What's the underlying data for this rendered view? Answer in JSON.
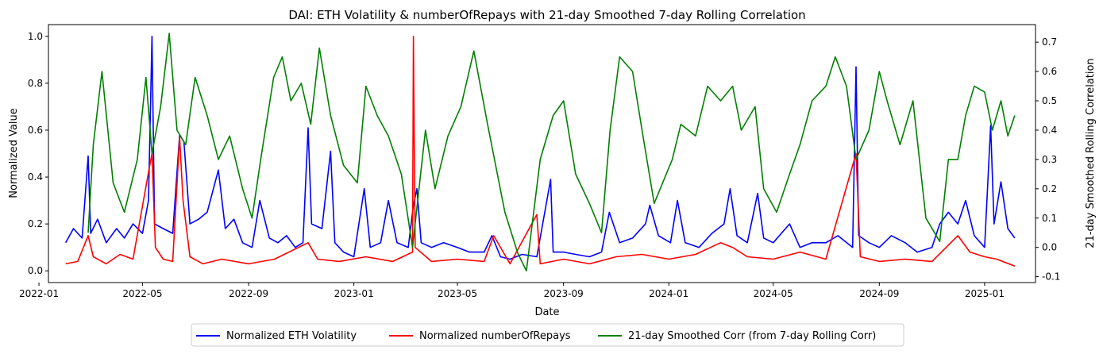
{
  "chart_data": {
    "type": "line",
    "title": "DAI: ETH Volatility & numberOfRepays with 21-day Smoothed 7-day Rolling Correlation",
    "xlabel": "Date",
    "ylabel": "Normalized Value",
    "y2label": "21-day Smoothed Rolling Correlation",
    "x_ticks": [
      "2022-01",
      "2022-05",
      "2022-09",
      "2023-01",
      "2023-05",
      "2023-09",
      "2024-01",
      "2024-05",
      "2024-09",
      "2025-01"
    ],
    "x_range": [
      "2022-01-12",
      "2025-03-01"
    ],
    "ylim": [
      -0.05,
      1.05
    ],
    "y_ticks": [
      "0.0",
      "0.2",
      "0.4",
      "0.6",
      "0.8",
      "1.0"
    ],
    "y2lim": [
      -0.12,
      0.76
    ],
    "y2_ticks": [
      "-0.1",
      "0.0",
      "0.1",
      "0.2",
      "0.3",
      "0.4",
      "0.5",
      "0.6",
      "0.7"
    ],
    "grid": false,
    "legend_placement": "bottom-center",
    "series": [
      {
        "name": "Normalized ETH Volatility",
        "axis": "left",
        "color": "#0000ff",
        "points": [
          [
            "2022-02-01",
            0.12
          ],
          [
            "2022-02-10",
            0.18
          ],
          [
            "2022-02-20",
            0.14
          ],
          [
            "2022-02-27",
            0.49
          ],
          [
            "2022-03-02",
            0.16
          ],
          [
            "2022-03-10",
            0.22
          ],
          [
            "2022-03-20",
            0.12
          ],
          [
            "2022-04-01",
            0.18
          ],
          [
            "2022-04-10",
            0.14
          ],
          [
            "2022-04-20",
            0.2
          ],
          [
            "2022-05-01",
            0.16
          ],
          [
            "2022-05-08",
            0.3
          ],
          [
            "2022-05-12",
            1.0
          ],
          [
            "2022-05-15",
            0.2
          ],
          [
            "2022-05-25",
            0.18
          ],
          [
            "2022-06-05",
            0.16
          ],
          [
            "2022-06-13",
            0.58
          ],
          [
            "2022-06-18",
            0.55
          ],
          [
            "2022-06-25",
            0.2
          ],
          [
            "2022-07-05",
            0.22
          ],
          [
            "2022-07-15",
            0.25
          ],
          [
            "2022-07-28",
            0.43
          ],
          [
            "2022-08-05",
            0.18
          ],
          [
            "2022-08-15",
            0.22
          ],
          [
            "2022-08-25",
            0.12
          ],
          [
            "2022-09-05",
            0.1
          ],
          [
            "2022-09-14",
            0.3
          ],
          [
            "2022-09-25",
            0.14
          ],
          [
            "2022-10-05",
            0.12
          ],
          [
            "2022-10-15",
            0.15
          ],
          [
            "2022-10-25",
            0.1
          ],
          [
            "2022-11-03",
            0.12
          ],
          [
            "2022-11-09",
            0.61
          ],
          [
            "2022-11-13",
            0.2
          ],
          [
            "2022-11-25",
            0.18
          ],
          [
            "2022-12-05",
            0.51
          ],
          [
            "2022-12-10",
            0.12
          ],
          [
            "2022-12-20",
            0.08
          ],
          [
            "2023-01-01",
            0.06
          ],
          [
            "2023-01-13",
            0.35
          ],
          [
            "2023-01-20",
            0.1
          ],
          [
            "2023-02-01",
            0.12
          ],
          [
            "2023-02-10",
            0.3
          ],
          [
            "2023-02-20",
            0.12
          ],
          [
            "2023-03-05",
            0.1
          ],
          [
            "2023-03-11",
            0.28
          ],
          [
            "2023-03-15",
            0.35
          ],
          [
            "2023-03-20",
            0.12
          ],
          [
            "2023-04-01",
            0.1
          ],
          [
            "2023-04-15",
            0.12
          ],
          [
            "2023-05-01",
            0.1
          ],
          [
            "2023-05-15",
            0.08
          ],
          [
            "2023-06-01",
            0.08
          ],
          [
            "2023-06-10",
            0.15
          ],
          [
            "2023-06-20",
            0.06
          ],
          [
            "2023-07-01",
            0.05
          ],
          [
            "2023-07-15",
            0.07
          ],
          [
            "2023-08-01",
            0.06
          ],
          [
            "2023-08-17",
            0.39
          ],
          [
            "2023-08-20",
            0.08
          ],
          [
            "2023-09-01",
            0.08
          ],
          [
            "2023-09-15",
            0.07
          ],
          [
            "2023-10-01",
            0.06
          ],
          [
            "2023-10-15",
            0.08
          ],
          [
            "2023-10-24",
            0.25
          ],
          [
            "2023-11-05",
            0.12
          ],
          [
            "2023-11-20",
            0.14
          ],
          [
            "2023-12-05",
            0.2
          ],
          [
            "2023-12-10",
            0.28
          ],
          [
            "2023-12-20",
            0.15
          ],
          [
            "2024-01-03",
            0.12
          ],
          [
            "2024-01-11",
            0.3
          ],
          [
            "2024-01-20",
            0.12
          ],
          [
            "2024-02-05",
            0.1
          ],
          [
            "2024-02-20",
            0.16
          ],
          [
            "2024-03-05",
            0.2
          ],
          [
            "2024-03-12",
            0.35
          ],
          [
            "2024-03-20",
            0.15
          ],
          [
            "2024-04-01",
            0.12
          ],
          [
            "2024-04-13",
            0.33
          ],
          [
            "2024-04-20",
            0.14
          ],
          [
            "2024-05-01",
            0.12
          ],
          [
            "2024-05-20",
            0.2
          ],
          [
            "2024-06-01",
            0.1
          ],
          [
            "2024-06-15",
            0.12
          ],
          [
            "2024-07-01",
            0.12
          ],
          [
            "2024-07-15",
            0.15
          ],
          [
            "2024-08-01",
            0.1
          ],
          [
            "2024-08-05",
            0.87
          ],
          [
            "2024-08-08",
            0.15
          ],
          [
            "2024-08-20",
            0.12
          ],
          [
            "2024-09-01",
            0.1
          ],
          [
            "2024-09-15",
            0.15
          ],
          [
            "2024-10-01",
            0.12
          ],
          [
            "2024-10-15",
            0.08
          ],
          [
            "2024-11-01",
            0.1
          ],
          [
            "2024-11-10",
            0.2
          ],
          [
            "2024-11-20",
            0.25
          ],
          [
            "2024-12-01",
            0.2
          ],
          [
            "2024-12-10",
            0.3
          ],
          [
            "2024-12-20",
            0.15
          ],
          [
            "2025-01-01",
            0.1
          ],
          [
            "2025-01-08",
            0.62
          ],
          [
            "2025-01-12",
            0.2
          ],
          [
            "2025-01-20",
            0.38
          ],
          [
            "2025-01-28",
            0.18
          ],
          [
            "2025-02-05",
            0.14
          ]
        ]
      },
      {
        "name": "Normalized numberOfRepays",
        "axis": "left",
        "color": "#ff0000",
        "points": [
          [
            "2022-02-01",
            0.03
          ],
          [
            "2022-02-15",
            0.04
          ],
          [
            "2022-02-27",
            0.15
          ],
          [
            "2022-03-05",
            0.06
          ],
          [
            "2022-03-20",
            0.03
          ],
          [
            "2022-04-05",
            0.07
          ],
          [
            "2022-04-20",
            0.05
          ],
          [
            "2022-05-08",
            0.42
          ],
          [
            "2022-05-12",
            0.5
          ],
          [
            "2022-05-16",
            0.1
          ],
          [
            "2022-05-25",
            0.05
          ],
          [
            "2022-06-05",
            0.04
          ],
          [
            "2022-06-13",
            0.57
          ],
          [
            "2022-06-17",
            0.3
          ],
          [
            "2022-06-25",
            0.06
          ],
          [
            "2022-07-10",
            0.03
          ],
          [
            "2022-08-01",
            0.05
          ],
          [
            "2022-09-01",
            0.03
          ],
          [
            "2022-10-01",
            0.05
          ],
          [
            "2022-11-09",
            0.12
          ],
          [
            "2022-11-20",
            0.05
          ],
          [
            "2022-12-15",
            0.04
          ],
          [
            "2023-01-15",
            0.06
          ],
          [
            "2023-02-15",
            0.04
          ],
          [
            "2023-03-10",
            0.08
          ],
          [
            "2023-03-11",
            1.0
          ],
          [
            "2023-03-13",
            0.1
          ],
          [
            "2023-04-01",
            0.04
          ],
          [
            "2023-05-01",
            0.05
          ],
          [
            "2023-06-01",
            0.04
          ],
          [
            "2023-06-12",
            0.15
          ],
          [
            "2023-07-01",
            0.03
          ],
          [
            "2023-08-01",
            0.24
          ],
          [
            "2023-08-05",
            0.03
          ],
          [
            "2023-09-01",
            0.05
          ],
          [
            "2023-10-01",
            0.03
          ],
          [
            "2023-11-01",
            0.06
          ],
          [
            "2023-12-01",
            0.07
          ],
          [
            "2024-01-01",
            0.05
          ],
          [
            "2024-02-01",
            0.07
          ],
          [
            "2024-03-01",
            0.12
          ],
          [
            "2024-03-15",
            0.1
          ],
          [
            "2024-04-01",
            0.06
          ],
          [
            "2024-05-01",
            0.05
          ],
          [
            "2024-06-01",
            0.08
          ],
          [
            "2024-07-01",
            0.05
          ],
          [
            "2024-08-05",
            0.5
          ],
          [
            "2024-08-10",
            0.06
          ],
          [
            "2024-09-01",
            0.04
          ],
          [
            "2024-10-01",
            0.05
          ],
          [
            "2024-11-01",
            0.04
          ],
          [
            "2024-12-01",
            0.15
          ],
          [
            "2024-12-15",
            0.08
          ],
          [
            "2025-01-01",
            0.06
          ],
          [
            "2025-01-15",
            0.05
          ],
          [
            "2025-02-05",
            0.02
          ]
        ]
      },
      {
        "name": "21-day Smoothed Corr (from 7-day Rolling Corr)",
        "axis": "right",
        "color": "#008000",
        "points": [
          [
            "2022-02-27",
            0.05
          ],
          [
            "2022-03-05",
            0.35
          ],
          [
            "2022-03-15",
            0.6
          ],
          [
            "2022-03-28",
            0.22
          ],
          [
            "2022-04-10",
            0.12
          ],
          [
            "2022-04-25",
            0.3
          ],
          [
            "2022-05-05",
            0.58
          ],
          [
            "2022-05-12",
            0.32
          ],
          [
            "2022-05-22",
            0.48
          ],
          [
            "2022-06-01",
            0.73
          ],
          [
            "2022-06-10",
            0.4
          ],
          [
            "2022-06-20",
            0.35
          ],
          [
            "2022-07-01",
            0.58
          ],
          [
            "2022-07-15",
            0.45
          ],
          [
            "2022-07-28",
            0.3
          ],
          [
            "2022-08-10",
            0.38
          ],
          [
            "2022-08-25",
            0.2
          ],
          [
            "2022-09-05",
            0.1
          ],
          [
            "2022-09-15",
            0.3
          ],
          [
            "2022-09-30",
            0.58
          ],
          [
            "2022-10-10",
            0.65
          ],
          [
            "2022-10-20",
            0.5
          ],
          [
            "2022-11-01",
            0.56
          ],
          [
            "2022-11-12",
            0.42
          ],
          [
            "2022-11-22",
            0.68
          ],
          [
            "2022-12-05",
            0.45
          ],
          [
            "2022-12-20",
            0.28
          ],
          [
            "2023-01-05",
            0.22
          ],
          [
            "2023-01-15",
            0.55
          ],
          [
            "2023-01-28",
            0.45
          ],
          [
            "2023-02-10",
            0.38
          ],
          [
            "2023-02-25",
            0.25
          ],
          [
            "2023-03-10",
            0.0
          ],
          [
            "2023-03-25",
            0.4
          ],
          [
            "2023-04-05",
            0.2
          ],
          [
            "2023-04-20",
            0.38
          ],
          [
            "2023-05-05",
            0.48
          ],
          [
            "2023-05-20",
            0.67
          ],
          [
            "2023-06-05",
            0.42
          ],
          [
            "2023-06-25",
            0.12
          ],
          [
            "2023-07-10",
            -0.02
          ],
          [
            "2023-07-20",
            -0.08
          ],
          [
            "2023-08-05",
            0.3
          ],
          [
            "2023-08-20",
            0.45
          ],
          [
            "2023-09-01",
            0.5
          ],
          [
            "2023-09-15",
            0.25
          ],
          [
            "2023-10-01",
            0.15
          ],
          [
            "2023-10-15",
            0.05
          ],
          [
            "2023-10-25",
            0.4
          ],
          [
            "2023-11-05",
            0.65
          ],
          [
            "2023-11-20",
            0.6
          ],
          [
            "2023-12-01",
            0.4
          ],
          [
            "2023-12-15",
            0.15
          ],
          [
            "2024-01-05",
            0.3
          ],
          [
            "2024-01-15",
            0.42
          ],
          [
            "2024-02-01",
            0.38
          ],
          [
            "2024-02-15",
            0.55
          ],
          [
            "2024-03-01",
            0.5
          ],
          [
            "2024-03-15",
            0.55
          ],
          [
            "2024-03-25",
            0.4
          ],
          [
            "2024-04-10",
            0.48
          ],
          [
            "2024-04-20",
            0.2
          ],
          [
            "2024-05-05",
            0.12
          ],
          [
            "2024-05-20",
            0.25
          ],
          [
            "2024-06-01",
            0.35
          ],
          [
            "2024-06-15",
            0.5
          ],
          [
            "2024-07-01",
            0.55
          ],
          [
            "2024-07-12",
            0.65
          ],
          [
            "2024-07-25",
            0.55
          ],
          [
            "2024-08-05",
            0.3
          ],
          [
            "2024-08-20",
            0.4
          ],
          [
            "2024-09-01",
            0.6
          ],
          [
            "2024-09-10",
            0.5
          ],
          [
            "2024-09-25",
            0.35
          ],
          [
            "2024-10-10",
            0.5
          ],
          [
            "2024-10-25",
            0.1
          ],
          [
            "2024-11-10",
            0.02
          ],
          [
            "2024-11-20",
            0.3
          ],
          [
            "2024-12-01",
            0.3
          ],
          [
            "2024-12-10",
            0.45
          ],
          [
            "2024-12-20",
            0.55
          ],
          [
            "2025-01-01",
            0.53
          ],
          [
            "2025-01-10",
            0.4
          ],
          [
            "2025-01-20",
            0.5
          ],
          [
            "2025-01-28",
            0.38
          ],
          [
            "2025-02-05",
            0.45
          ]
        ]
      }
    ]
  }
}
